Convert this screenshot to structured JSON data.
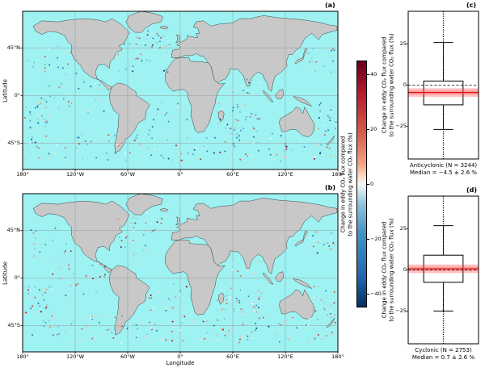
{
  "colors": {
    "ocean": "#9ef2f2",
    "land": "#c8c8c8",
    "coast": "#1a1a1a",
    "grid": "#999999",
    "frame": "#000000",
    "band_red": "#ff3333",
    "median_red": "#dd1111"
  },
  "colormap": {
    "vmin": -45,
    "vmax": 45,
    "stops": [
      {
        "t": 0,
        "c": "#053061"
      },
      {
        "t": 0.12,
        "c": "#2166ac"
      },
      {
        "t": 0.3,
        "c": "#4393c3"
      },
      {
        "t": 0.42,
        "c": "#92c5de"
      },
      {
        "t": 0.47,
        "c": "#d1e5f0"
      },
      {
        "t": 0.5,
        "c": "#f7f7f7"
      },
      {
        "t": 0.53,
        "c": "#fddbc7"
      },
      {
        "t": 0.58,
        "c": "#f4a582"
      },
      {
        "t": 0.7,
        "c": "#d6604d"
      },
      {
        "t": 0.88,
        "c": "#b2182b"
      },
      {
        "t": 1,
        "c": "#67001f"
      }
    ]
  },
  "colorbar": {
    "label_lines": [
      "Change in eddy CO₂ flux compared",
      "to the surrounding water CO₂ flux (%)"
    ],
    "ticks": [
      {
        "v": 40,
        "label": "40"
      },
      {
        "v": 20,
        "label": "20"
      },
      {
        "v": 0,
        "label": "0"
      },
      {
        "v": -20,
        "label": "−20"
      },
      {
        "v": -40,
        "label": "−40"
      }
    ]
  },
  "maps": {
    "xlabel": "Longitude",
    "ylabel": "Latitude",
    "lon_range": [
      -180,
      180
    ],
    "lat_range": [
      -70,
      80
    ],
    "xticks": [
      {
        "v": -180,
        "label": "180°"
      },
      {
        "v": -120,
        "label": "120°W"
      },
      {
        "v": -60,
        "label": "60°W"
      },
      {
        "v": 0,
        "label": "0°"
      },
      {
        "v": 60,
        "label": "60°E"
      },
      {
        "v": 120,
        "label": "120°E"
      },
      {
        "v": 180,
        "label": "180°"
      }
    ],
    "yticks": [
      {
        "v": 45,
        "label": "45°N"
      },
      {
        "v": 0,
        "label": "0°"
      },
      {
        "v": -45,
        "label": "45°S"
      }
    ],
    "grid_lons": [
      -120,
      -60,
      0,
      60,
      120
    ],
    "grid_lats": [
      45,
      0,
      -45
    ]
  },
  "chart_data": [
    {
      "type": "scatter",
      "panel": "(a)",
      "group": "Anticyclonic eddies",
      "n_eddies": 3244,
      "value_label": "Change in eddy CO₂ flux compared to the surrounding water CO₂ flux (%)",
      "value_range": [
        -45,
        45
      ],
      "sample_n": 360,
      "value_mean": -6,
      "value_sd": 16,
      "seed": 20240117
    },
    {
      "type": "scatter",
      "panel": "(b)",
      "group": "Cyclonic eddies",
      "n_eddies": 2753,
      "value_label": "Change in eddy CO₂ flux compared to the surrounding water CO₂ flux (%)",
      "value_range": [
        -45,
        45
      ],
      "sample_n": 350,
      "value_mean": 2,
      "value_sd": 16,
      "seed": 77031
    },
    {
      "type": "boxplot",
      "panel": "(c)",
      "title": "Anticyclonic (N = 3244)",
      "subtitle": "Median = −4.5 ± 2.6 %",
      "median": -4.5,
      "median_uncertainty": 2.6,
      "q1": -12,
      "q3": 2.5,
      "whisker_low": -27,
      "whisker_high": 26,
      "zero_line": 0,
      "ylim": [
        -45,
        45
      ],
      "yticks": [
        {
          "v": 25,
          "label": "25"
        },
        {
          "v": 0,
          "label": "0"
        },
        {
          "v": -25,
          "label": "−25"
        }
      ],
      "ylabel_lines": [
        "Change in eddy CO₂ flux compared",
        "to the surrounding water CO₂ flux (%)"
      ]
    },
    {
      "type": "boxplot",
      "panel": "(d)",
      "title": "Cyclonic (N = 2753)",
      "subtitle": "Median = 0.7 ± 2.6 %",
      "median": 0.7,
      "median_uncertainty": 2.6,
      "q1": -7.5,
      "q3": 9,
      "whisker_low": -25,
      "whisker_high": 27,
      "zero_line": 0,
      "ylim": [
        -45,
        45
      ],
      "yticks": [
        {
          "v": 25,
          "label": "25"
        },
        {
          "v": 0,
          "label": "0"
        },
        {
          "v": -25,
          "label": "−25"
        }
      ],
      "ylabel_lines": [
        "Change in eddy CO₂ flux compared",
        "to the surrounding water CO₂ flux (%)"
      ]
    }
  ],
  "map_render": {
    "regions": [
      {
        "lon": [
          -178,
          178
        ],
        "lat": [
          -62,
          -36
        ],
        "w": 40
      },
      {
        "lon": [
          -72,
          -12
        ],
        "lat": [
          22,
          58
        ],
        "w": 8
      },
      {
        "lon": [
          -178,
          -118
        ],
        "lat": [
          18,
          48
        ],
        "w": 7
      },
      {
        "lon": [
          142,
          178
        ],
        "lat": [
          22,
          45
        ],
        "w": 5
      },
      {
        "lon": [
          -155,
          -85
        ],
        "lat": [
          -18,
          14
        ],
        "w": 8
      },
      {
        "lon": [
          -36,
          8
        ],
        "lat": [
          -34,
          -4
        ],
        "w": 6
      },
      {
        "lon": [
          42,
          98
        ],
        "lat": [
          -34,
          -6
        ],
        "w": 8
      },
      {
        "lon": [
          52,
          92
        ],
        "lat": [
          2,
          16
        ],
        "w": 3
      },
      {
        "lon": [
          152,
          178
        ],
        "lat": [
          -36,
          -6
        ],
        "w": 6
      },
      {
        "lon": [
          -178,
          -150
        ],
        "lat": [
          -34,
          -2
        ],
        "w": 7
      },
      {
        "lon": [
          -45,
          -15
        ],
        "lat": [
          40,
          62
        ],
        "w": 3
      },
      {
        "lon": [
          60,
          95
        ],
        "lat": [
          -35,
          -10
        ],
        "w": 4
      }
    ],
    "continents": {
      "north_america": [
        [
          -168,
          66
        ],
        [
          -158,
          71
        ],
        [
          -140,
          70
        ],
        [
          -125,
          72
        ],
        [
          -110,
          73
        ],
        [
          -95,
          72
        ],
        [
          -85,
          70
        ],
        [
          -78,
          73
        ],
        [
          -68,
          68
        ],
        [
          -58,
          60
        ],
        [
          -64,
          50
        ],
        [
          -70,
          47
        ],
        [
          -66,
          44
        ],
        [
          -74,
          40
        ],
        [
          -76,
          35
        ],
        [
          -80,
          32
        ],
        [
          -81,
          26
        ],
        [
          -87,
          30
        ],
        [
          -94,
          29
        ],
        [
          -97,
          22
        ],
        [
          -95,
          16
        ],
        [
          -88,
          13
        ],
        [
          -83,
          10
        ],
        [
          -78,
          8
        ],
        [
          -82,
          5
        ],
        [
          -87,
          10
        ],
        [
          -93,
          15
        ],
        [
          -100,
          17
        ],
        [
          -104,
          19
        ],
        [
          -110,
          23
        ],
        [
          -114,
          29
        ],
        [
          -121,
          34
        ],
        [
          -124,
          40
        ],
        [
          -124,
          48
        ],
        [
          -128,
          51
        ],
        [
          -132,
          57
        ],
        [
          -140,
          60
        ],
        [
          -150,
          61
        ],
        [
          -158,
          58
        ],
        [
          -165,
          61
        ]
      ],
      "greenland": [
        [
          -58,
          64
        ],
        [
          -52,
          60
        ],
        [
          -44,
          60
        ],
        [
          -40,
          64
        ],
        [
          -32,
          68
        ],
        [
          -22,
          70
        ],
        [
          -20,
          75
        ],
        [
          -30,
          78
        ],
        [
          -45,
          80
        ],
        [
          -58,
          76
        ],
        [
          -62,
          70
        ]
      ],
      "iceland": [
        [
          -22,
          64
        ],
        [
          -16,
          63
        ],
        [
          -14,
          65
        ],
        [
          -19,
          66
        ],
        [
          -23,
          65
        ]
      ],
      "south_america": [
        [
          -78,
          8
        ],
        [
          -72,
          12
        ],
        [
          -64,
          11
        ],
        [
          -60,
          9
        ],
        [
          -55,
          6
        ],
        [
          -51,
          4
        ],
        [
          -50,
          0
        ],
        [
          -44,
          -3
        ],
        [
          -37,
          -7
        ],
        [
          -35,
          -9
        ],
        [
          -39,
          -15
        ],
        [
          -40,
          -22
        ],
        [
          -48,
          -26
        ],
        [
          -53,
          -34
        ],
        [
          -58,
          -39
        ],
        [
          -62,
          -41
        ],
        [
          -65,
          -47
        ],
        [
          -69,
          -52
        ],
        [
          -74,
          -54
        ],
        [
          -75,
          -47
        ],
        [
          -73,
          -40
        ],
        [
          -71,
          -30
        ],
        [
          -70,
          -18
        ],
        [
          -76,
          -14
        ],
        [
          -80,
          -6
        ],
        [
          -81,
          0
        ],
        [
          -80,
          4
        ]
      ],
      "africa": [
        [
          -6,
          35
        ],
        [
          0,
          36
        ],
        [
          10,
          36
        ],
        [
          11,
          33
        ],
        [
          19,
          32
        ],
        [
          25,
          32
        ],
        [
          32,
          31
        ],
        [
          35,
          28
        ],
        [
          39,
          15
        ],
        [
          43,
          12
        ],
        [
          46,
          11
        ],
        [
          51,
          12
        ],
        [
          44,
          5
        ],
        [
          41,
          -1
        ],
        [
          40,
          -7
        ],
        [
          36,
          -17
        ],
        [
          33,
          -26
        ],
        [
          27,
          -34
        ],
        [
          20,
          -35
        ],
        [
          17,
          -33
        ],
        [
          15,
          -27
        ],
        [
          12,
          -18
        ],
        [
          13,
          -11
        ],
        [
          9,
          -2
        ],
        [
          8,
          3
        ],
        [
          4,
          6
        ],
        [
          -4,
          5
        ],
        [
          -8,
          4
        ],
        [
          -13,
          8
        ],
        [
          -17,
          14
        ],
        [
          -17,
          21
        ],
        [
          -15,
          25
        ],
        [
          -10,
          31
        ]
      ],
      "eurasia": [
        [
          -10,
          36
        ],
        [
          -9,
          43
        ],
        [
          -2,
          44
        ],
        [
          0,
          47
        ],
        [
          -4,
          48
        ],
        [
          -1,
          50
        ],
        [
          4,
          52
        ],
        [
          8,
          54
        ],
        [
          8,
          57
        ],
        [
          12,
          56
        ],
        [
          20,
          55
        ],
        [
          18,
          59
        ],
        [
          22,
          59
        ],
        [
          20,
          64
        ],
        [
          15,
          65
        ],
        [
          18,
          70
        ],
        [
          26,
          71
        ],
        [
          30,
          69
        ],
        [
          35,
          66
        ],
        [
          40,
          67
        ],
        [
          45,
          68
        ],
        [
          60,
          69
        ],
        [
          68,
          73
        ],
        [
          80,
          73
        ],
        [
          95,
          76
        ],
        [
          110,
          74
        ],
        [
          125,
          73
        ],
        [
          140,
          72
        ],
        [
          155,
          70
        ],
        [
          162,
          69
        ],
        [
          170,
          67
        ],
        [
          179,
          66
        ],
        [
          179,
          62
        ],
        [
          170,
          60
        ],
        [
          162,
          58
        ],
        [
          158,
          53
        ],
        [
          150,
          59
        ],
        [
          142,
          54
        ],
        [
          137,
          46
        ],
        [
          132,
          43
        ],
        [
          128,
          39
        ],
        [
          124,
          39
        ],
        [
          121,
          32
        ],
        [
          122,
          28
        ],
        [
          116,
          23
        ],
        [
          108,
          18
        ],
        [
          106,
          12
        ],
        [
          104,
          4
        ],
        [
          101,
          6
        ],
        [
          99,
          12
        ],
        [
          96,
          16
        ],
        [
          94,
          20
        ],
        [
          90,
          22
        ],
        [
          88,
          22
        ],
        [
          85,
          20
        ],
        [
          81,
          16
        ],
        [
          79,
          9
        ],
        [
          76,
          9
        ],
        [
          72,
          19
        ],
        [
          69,
          22
        ],
        [
          66,
          25
        ],
        [
          61,
          25
        ],
        [
          57,
          26
        ],
        [
          56,
          22
        ],
        [
          52,
          16
        ],
        [
          46,
          14
        ],
        [
          43,
          12
        ],
        [
          39,
          15
        ],
        [
          35,
          28
        ],
        [
          32,
          31
        ],
        [
          27,
          37
        ],
        [
          22,
          38
        ],
        [
          19,
          40
        ],
        [
          13,
          38
        ],
        [
          5,
          38
        ],
        [
          -2,
          36
        ],
        [
          -6,
          36
        ]
      ],
      "britain": [
        [
          -5,
          50
        ],
        [
          -3,
          53
        ],
        [
          -4,
          58
        ],
        [
          -1,
          57
        ],
        [
          0,
          52
        ]
      ],
      "japan": [
        [
          131,
          31
        ],
        [
          134,
          34
        ],
        [
          137,
          35
        ],
        [
          140,
          36
        ],
        [
          141,
          40
        ],
        [
          143,
          45
        ],
        [
          145,
          44
        ],
        [
          142,
          39
        ],
        [
          140,
          34
        ],
        [
          135,
          32
        ],
        [
          132,
          30
        ]
      ],
      "sumatra": [
        [
          95,
          5
        ],
        [
          99,
          2
        ],
        [
          103,
          -2
        ],
        [
          106,
          -6
        ],
        [
          103,
          -5
        ],
        [
          98,
          0
        ],
        [
          95,
          3
        ]
      ],
      "borneo": [
        [
          109,
          1
        ],
        [
          113,
          5
        ],
        [
          117,
          6
        ],
        [
          118,
          1
        ],
        [
          115,
          -3
        ],
        [
          111,
          -3
        ],
        [
          109,
          -1
        ]
      ],
      "new_guinea": [
        [
          131,
          -1
        ],
        [
          137,
          -2
        ],
        [
          142,
          -4
        ],
        [
          147,
          -7
        ],
        [
          150,
          -10
        ],
        [
          144,
          -8
        ],
        [
          138,
          -6
        ],
        [
          132,
          -3
        ],
        [
          129,
          -1
        ]
      ],
      "australia": [
        [
          114,
          -22
        ],
        [
          113,
          -26
        ],
        [
          116,
          -34
        ],
        [
          120,
          -34
        ],
        [
          126,
          -32
        ],
        [
          132,
          -32
        ],
        [
          136,
          -35
        ],
        [
          140,
          -38
        ],
        [
          146,
          -39
        ],
        [
          150,
          -37
        ],
        [
          153,
          -32
        ],
        [
          153,
          -27
        ],
        [
          151,
          -24
        ],
        [
          148,
          -20
        ],
        [
          145,
          -15
        ],
        [
          142,
          -11
        ],
        [
          140,
          -17
        ],
        [
          136,
          -12
        ],
        [
          132,
          -11
        ],
        [
          128,
          -15
        ],
        [
          122,
          -18
        ],
        [
          118,
          -20
        ]
      ],
      "new_zealand": [
        [
          167,
          -46
        ],
        [
          170,
          -44
        ],
        [
          173,
          -41
        ],
        [
          176,
          -38
        ],
        [
          174,
          -42
        ],
        [
          171,
          -45
        ],
        [
          168,
          -47
        ]
      ],
      "madagascar": [
        [
          44,
          -16
        ],
        [
          48,
          -14
        ],
        [
          50,
          -17
        ],
        [
          49,
          -22
        ],
        [
          46,
          -25
        ],
        [
          44,
          -21
        ]
      ]
    }
  }
}
